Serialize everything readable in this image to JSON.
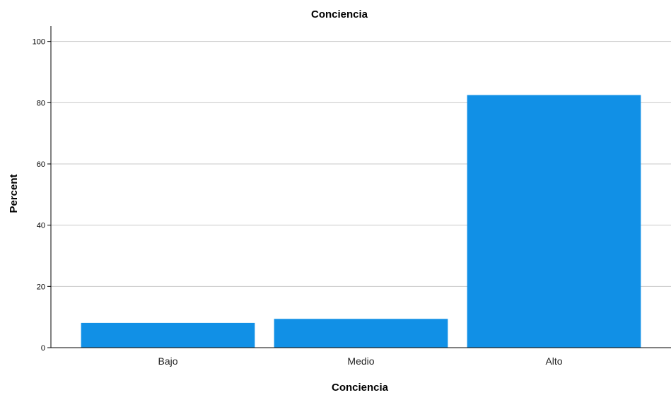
{
  "chart_data": {
    "type": "bar",
    "title": "Conciencia",
    "xlabel": "Conciencia",
    "ylabel": "Percent",
    "categories": [
      "Bajo",
      "Medio",
      "Alto"
    ],
    "values": [
      8.1,
      9.4,
      82.5
    ],
    "ylim": [
      0,
      105
    ],
    "yticks": [
      "0",
      "20",
      "40",
      "60",
      "80",
      "100"
    ],
    "grid": true,
    "bar_color": "#1190e6",
    "grid_color": "#c8c8c8"
  }
}
